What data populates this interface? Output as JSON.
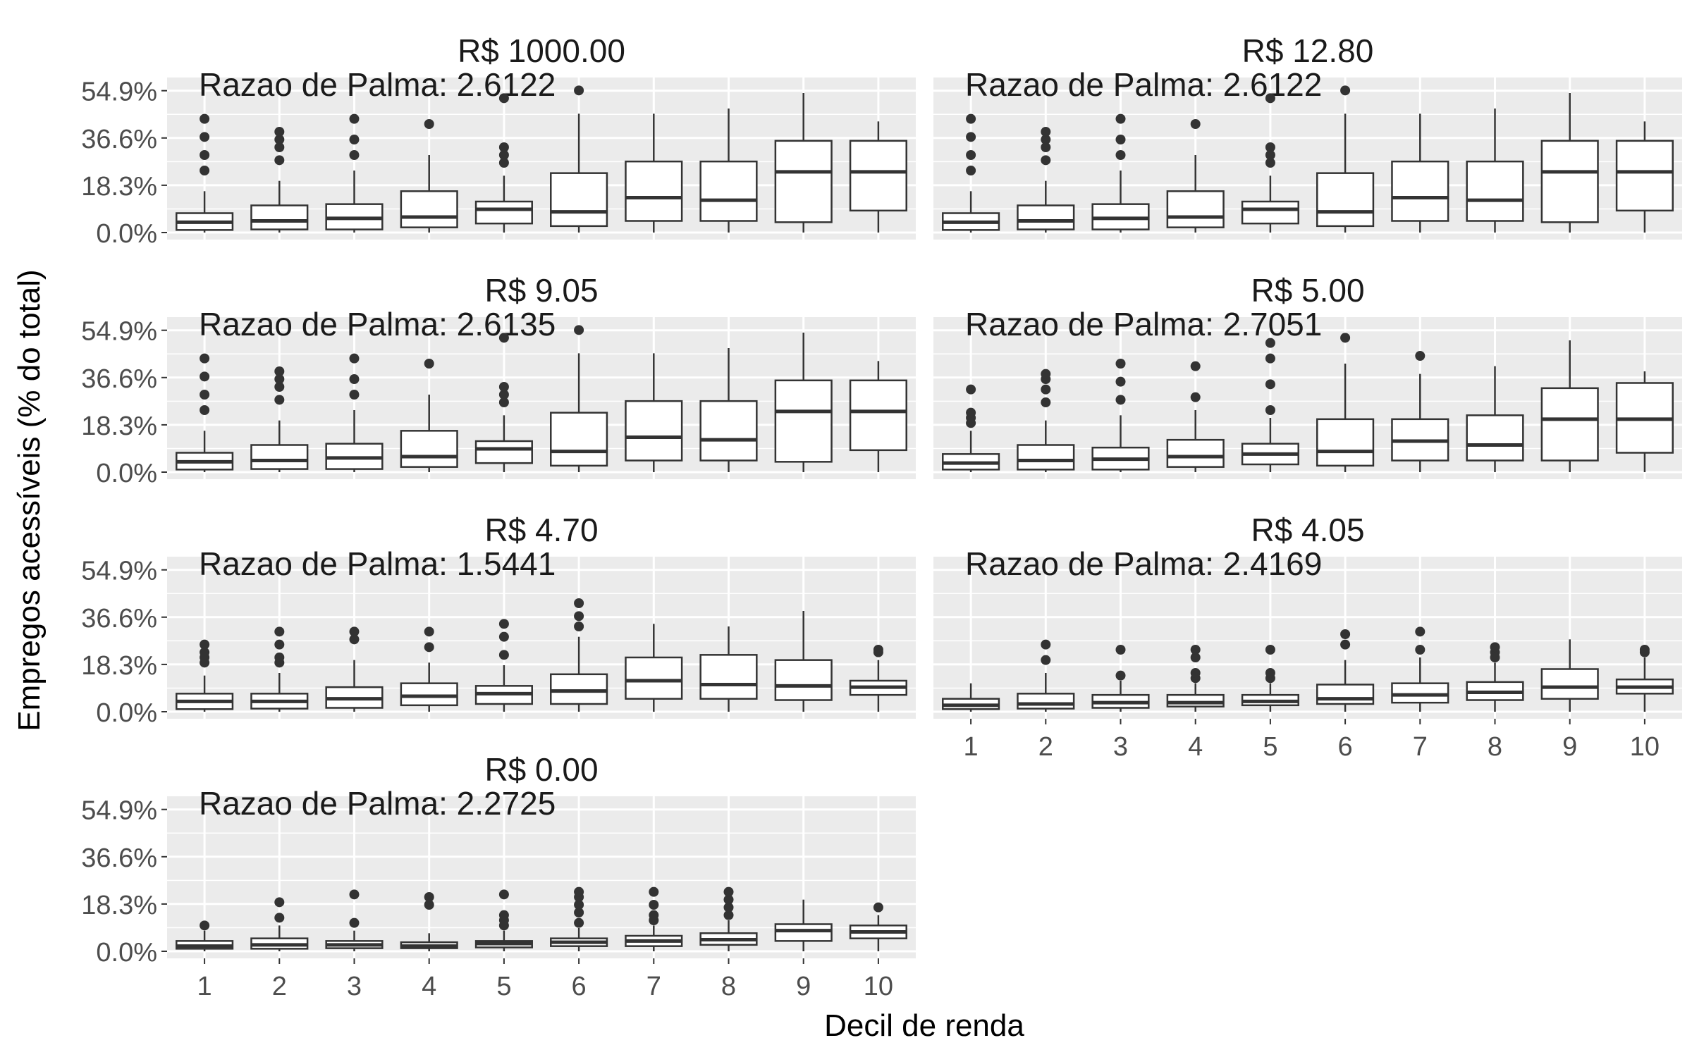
{
  "chart_data": {
    "type": "boxplot",
    "xlabel": "Decil de renda",
    "ylabel": "Empregos acessíveis (% do total)",
    "ylim": [
      0,
      0.6
    ],
    "y_ticks": [
      0.0,
      0.183,
      0.366,
      0.549
    ],
    "y_tick_labels": [
      "0.0%",
      "18.3%",
      "36.6%",
      "54.9%"
    ],
    "categories": [
      "1",
      "2",
      "3",
      "4",
      "5",
      "6",
      "7",
      "8",
      "9",
      "10"
    ],
    "grid": true,
    "annotation_prefix": "Razao de Palma: ",
    "panels": [
      {
        "title": "R$ 1000.00",
        "palma": "2.6122",
        "boxes": [
          {
            "min": 0.0,
            "q1": 0.01,
            "median": 0.04,
            "q3": 0.075,
            "max": 0.16,
            "outliers": [
              0.24,
              0.3,
              0.37,
              0.44
            ]
          },
          {
            "min": 0.0,
            "q1": 0.012,
            "median": 0.045,
            "q3": 0.105,
            "max": 0.2,
            "outliers": [
              0.28,
              0.33,
              0.36,
              0.39
            ]
          },
          {
            "min": 0.0,
            "q1": 0.012,
            "median": 0.055,
            "q3": 0.11,
            "max": 0.24,
            "outliers": [
              0.3,
              0.36,
              0.44
            ]
          },
          {
            "min": 0.0,
            "q1": 0.02,
            "median": 0.06,
            "q3": 0.16,
            "max": 0.3,
            "outliers": [
              0.42
            ]
          },
          {
            "min": 0.0,
            "q1": 0.035,
            "median": 0.09,
            "q3": 0.12,
            "max": 0.22,
            "outliers": [
              0.27,
              0.3,
              0.33,
              0.52
            ]
          },
          {
            "min": 0.0,
            "q1": 0.025,
            "median": 0.08,
            "q3": 0.23,
            "max": 0.46,
            "outliers": [
              0.55
            ]
          },
          {
            "min": 0.0,
            "q1": 0.045,
            "median": 0.135,
            "q3": 0.275,
            "max": 0.46,
            "outliers": []
          },
          {
            "min": 0.0,
            "q1": 0.045,
            "median": 0.125,
            "q3": 0.275,
            "max": 0.48,
            "outliers": []
          },
          {
            "min": 0.0,
            "q1": 0.04,
            "median": 0.235,
            "q3": 0.355,
            "max": 0.54,
            "outliers": []
          },
          {
            "min": 0.0,
            "q1": 0.085,
            "median": 0.235,
            "q3": 0.355,
            "max": 0.43,
            "outliers": []
          }
        ]
      },
      {
        "title": "R$ 12.80",
        "palma": "2.6122",
        "boxes": [
          {
            "min": 0.0,
            "q1": 0.01,
            "median": 0.04,
            "q3": 0.075,
            "max": 0.16,
            "outliers": [
              0.24,
              0.3,
              0.37,
              0.44
            ]
          },
          {
            "min": 0.0,
            "q1": 0.012,
            "median": 0.045,
            "q3": 0.105,
            "max": 0.2,
            "outliers": [
              0.28,
              0.33,
              0.36,
              0.39
            ]
          },
          {
            "min": 0.0,
            "q1": 0.012,
            "median": 0.055,
            "q3": 0.11,
            "max": 0.24,
            "outliers": [
              0.3,
              0.36,
              0.44
            ]
          },
          {
            "min": 0.0,
            "q1": 0.02,
            "median": 0.06,
            "q3": 0.16,
            "max": 0.3,
            "outliers": [
              0.42
            ]
          },
          {
            "min": 0.0,
            "q1": 0.035,
            "median": 0.09,
            "q3": 0.12,
            "max": 0.22,
            "outliers": [
              0.27,
              0.3,
              0.33,
              0.52
            ]
          },
          {
            "min": 0.0,
            "q1": 0.025,
            "median": 0.08,
            "q3": 0.23,
            "max": 0.46,
            "outliers": [
              0.55
            ]
          },
          {
            "min": 0.0,
            "q1": 0.045,
            "median": 0.135,
            "q3": 0.275,
            "max": 0.46,
            "outliers": []
          },
          {
            "min": 0.0,
            "q1": 0.045,
            "median": 0.125,
            "q3": 0.275,
            "max": 0.48,
            "outliers": []
          },
          {
            "min": 0.0,
            "q1": 0.04,
            "median": 0.235,
            "q3": 0.355,
            "max": 0.54,
            "outliers": []
          },
          {
            "min": 0.0,
            "q1": 0.085,
            "median": 0.235,
            "q3": 0.355,
            "max": 0.43,
            "outliers": []
          }
        ]
      },
      {
        "title": "R$ 9.05",
        "palma": "2.6135",
        "boxes": [
          {
            "min": 0.0,
            "q1": 0.01,
            "median": 0.04,
            "q3": 0.075,
            "max": 0.16,
            "outliers": [
              0.24,
              0.3,
              0.37,
              0.44
            ]
          },
          {
            "min": 0.0,
            "q1": 0.012,
            "median": 0.045,
            "q3": 0.105,
            "max": 0.2,
            "outliers": [
              0.28,
              0.33,
              0.36,
              0.39
            ]
          },
          {
            "min": 0.0,
            "q1": 0.012,
            "median": 0.055,
            "q3": 0.11,
            "max": 0.24,
            "outliers": [
              0.3,
              0.36,
              0.44
            ]
          },
          {
            "min": 0.0,
            "q1": 0.02,
            "median": 0.06,
            "q3": 0.16,
            "max": 0.3,
            "outliers": [
              0.42
            ]
          },
          {
            "min": 0.0,
            "q1": 0.035,
            "median": 0.09,
            "q3": 0.12,
            "max": 0.22,
            "outliers": [
              0.27,
              0.3,
              0.33,
              0.52
            ]
          },
          {
            "min": 0.0,
            "q1": 0.025,
            "median": 0.08,
            "q3": 0.23,
            "max": 0.46,
            "outliers": [
              0.55
            ]
          },
          {
            "min": 0.0,
            "q1": 0.045,
            "median": 0.135,
            "q3": 0.275,
            "max": 0.46,
            "outliers": []
          },
          {
            "min": 0.0,
            "q1": 0.045,
            "median": 0.125,
            "q3": 0.275,
            "max": 0.48,
            "outliers": []
          },
          {
            "min": 0.0,
            "q1": 0.04,
            "median": 0.235,
            "q3": 0.355,
            "max": 0.54,
            "outliers": []
          },
          {
            "min": 0.0,
            "q1": 0.085,
            "median": 0.235,
            "q3": 0.355,
            "max": 0.43,
            "outliers": []
          }
        ]
      },
      {
        "title": "R$ 5.00",
        "palma": "2.7051",
        "boxes": [
          {
            "min": 0.0,
            "q1": 0.01,
            "median": 0.035,
            "q3": 0.07,
            "max": 0.16,
            "outliers": [
              0.19,
              0.21,
              0.23,
              0.32
            ]
          },
          {
            "min": 0.0,
            "q1": 0.01,
            "median": 0.045,
            "q3": 0.105,
            "max": 0.2,
            "outliers": [
              0.27,
              0.32,
              0.36,
              0.38
            ]
          },
          {
            "min": 0.0,
            "q1": 0.01,
            "median": 0.05,
            "q3": 0.095,
            "max": 0.22,
            "outliers": [
              0.28,
              0.35,
              0.42
            ]
          },
          {
            "min": 0.0,
            "q1": 0.02,
            "median": 0.06,
            "q3": 0.125,
            "max": 0.24,
            "outliers": [
              0.29,
              0.41
            ]
          },
          {
            "min": 0.0,
            "q1": 0.03,
            "median": 0.07,
            "q3": 0.11,
            "max": 0.21,
            "outliers": [
              0.24,
              0.34,
              0.44,
              0.5
            ]
          },
          {
            "min": 0.0,
            "q1": 0.025,
            "median": 0.08,
            "q3": 0.205,
            "max": 0.42,
            "outliers": [
              0.52
            ]
          },
          {
            "min": 0.0,
            "q1": 0.045,
            "median": 0.12,
            "q3": 0.205,
            "max": 0.38,
            "outliers": [
              0.45
            ]
          },
          {
            "min": 0.0,
            "q1": 0.045,
            "median": 0.105,
            "q3": 0.22,
            "max": 0.41,
            "outliers": []
          },
          {
            "min": 0.0,
            "q1": 0.045,
            "median": 0.205,
            "q3": 0.325,
            "max": 0.51,
            "outliers": []
          },
          {
            "min": 0.0,
            "q1": 0.075,
            "median": 0.205,
            "q3": 0.345,
            "max": 0.39,
            "outliers": []
          }
        ]
      },
      {
        "title": "R$ 4.70",
        "palma": "1.5441",
        "boxes": [
          {
            "min": 0.0,
            "q1": 0.01,
            "median": 0.04,
            "q3": 0.07,
            "max": 0.14,
            "outliers": [
              0.19,
              0.21,
              0.23,
              0.26
            ]
          },
          {
            "min": 0.0,
            "q1": 0.012,
            "median": 0.04,
            "q3": 0.07,
            "max": 0.15,
            "outliers": [
              0.19,
              0.21,
              0.26,
              0.31
            ]
          },
          {
            "min": 0.0,
            "q1": 0.015,
            "median": 0.05,
            "q3": 0.095,
            "max": 0.2,
            "outliers": [
              0.28,
              0.31
            ]
          },
          {
            "min": 0.0,
            "q1": 0.025,
            "median": 0.06,
            "q3": 0.11,
            "max": 0.19,
            "outliers": [
              0.25,
              0.31
            ]
          },
          {
            "min": 0.0,
            "q1": 0.03,
            "median": 0.07,
            "q3": 0.1,
            "max": 0.18,
            "outliers": [
              0.22,
              0.29,
              0.34
            ]
          },
          {
            "min": 0.0,
            "q1": 0.03,
            "median": 0.08,
            "q3": 0.145,
            "max": 0.29,
            "outliers": [
              0.33,
              0.37,
              0.42
            ]
          },
          {
            "min": 0.0,
            "q1": 0.05,
            "median": 0.12,
            "q3": 0.21,
            "max": 0.34,
            "outliers": []
          },
          {
            "min": 0.0,
            "q1": 0.05,
            "median": 0.105,
            "q3": 0.22,
            "max": 0.33,
            "outliers": []
          },
          {
            "min": 0.0,
            "q1": 0.045,
            "median": 0.1,
            "q3": 0.2,
            "max": 0.39,
            "outliers": []
          },
          {
            "min": 0.0,
            "q1": 0.065,
            "median": 0.095,
            "q3": 0.12,
            "max": 0.2,
            "outliers": [
              0.23,
              0.24
            ]
          }
        ]
      },
      {
        "title": "R$ 4.05",
        "palma": "2.4169",
        "boxes": [
          {
            "min": 0.0,
            "q1": 0.01,
            "median": 0.025,
            "q3": 0.05,
            "max": 0.11,
            "outliers": []
          },
          {
            "min": 0.0,
            "q1": 0.012,
            "median": 0.03,
            "q3": 0.07,
            "max": 0.15,
            "outliers": [
              0.2,
              0.26
            ]
          },
          {
            "min": 0.0,
            "q1": 0.015,
            "median": 0.035,
            "q3": 0.065,
            "max": 0.12,
            "outliers": [
              0.14,
              0.24
            ]
          },
          {
            "min": 0.0,
            "q1": 0.02,
            "median": 0.035,
            "q3": 0.065,
            "max": 0.11,
            "outliers": [
              0.13,
              0.15,
              0.21,
              0.24
            ]
          },
          {
            "min": 0.0,
            "q1": 0.025,
            "median": 0.04,
            "q3": 0.065,
            "max": 0.11,
            "outliers": [
              0.13,
              0.15,
              0.24
            ]
          },
          {
            "min": 0.0,
            "q1": 0.03,
            "median": 0.05,
            "q3": 0.105,
            "max": 0.2,
            "outliers": [
              0.26,
              0.3
            ]
          },
          {
            "min": 0.0,
            "q1": 0.035,
            "median": 0.065,
            "q3": 0.11,
            "max": 0.21,
            "outliers": [
              0.24,
              0.31
            ]
          },
          {
            "min": 0.0,
            "q1": 0.045,
            "median": 0.075,
            "q3": 0.115,
            "max": 0.19,
            "outliers": [
              0.21,
              0.23,
              0.25
            ]
          },
          {
            "min": 0.0,
            "q1": 0.05,
            "median": 0.095,
            "q3": 0.165,
            "max": 0.28,
            "outliers": []
          },
          {
            "min": 0.0,
            "q1": 0.07,
            "median": 0.095,
            "q3": 0.125,
            "max": 0.21,
            "outliers": [
              0.23,
              0.24
            ]
          }
        ]
      },
      {
        "title": "R$ 0.00",
        "palma": "2.2725",
        "boxes": [
          {
            "min": 0.0,
            "q1": 0.01,
            "median": 0.02,
            "q3": 0.04,
            "max": 0.08,
            "outliers": [
              0.1
            ]
          },
          {
            "min": 0.0,
            "q1": 0.01,
            "median": 0.025,
            "q3": 0.05,
            "max": 0.1,
            "outliers": [
              0.13,
              0.19
            ]
          },
          {
            "min": 0.0,
            "q1": 0.012,
            "median": 0.025,
            "q3": 0.04,
            "max": 0.08,
            "outliers": [
              0.11,
              0.22
            ]
          },
          {
            "min": 0.0,
            "q1": 0.012,
            "median": 0.02,
            "q3": 0.035,
            "max": 0.07,
            "outliers": [
              0.18,
              0.21
            ]
          },
          {
            "min": 0.0,
            "q1": 0.015,
            "median": 0.03,
            "q3": 0.04,
            "max": 0.08,
            "outliers": [
              0.1,
              0.12,
              0.14,
              0.22
            ]
          },
          {
            "min": 0.0,
            "q1": 0.02,
            "median": 0.035,
            "q3": 0.05,
            "max": 0.09,
            "outliers": [
              0.11,
              0.15,
              0.18,
              0.21,
              0.23
            ]
          },
          {
            "min": 0.0,
            "q1": 0.02,
            "median": 0.04,
            "q3": 0.06,
            "max": 0.1,
            "outliers": [
              0.12,
              0.14,
              0.18,
              0.23
            ]
          },
          {
            "min": 0.0,
            "q1": 0.025,
            "median": 0.045,
            "q3": 0.07,
            "max": 0.12,
            "outliers": [
              0.14,
              0.17,
              0.2,
              0.23
            ]
          },
          {
            "min": 0.0,
            "q1": 0.04,
            "median": 0.08,
            "q3": 0.105,
            "max": 0.2,
            "outliers": []
          },
          {
            "min": 0.0,
            "q1": 0.05,
            "median": 0.075,
            "q3": 0.1,
            "max": 0.14,
            "outliers": [
              0.17
            ]
          }
        ]
      }
    ]
  }
}
